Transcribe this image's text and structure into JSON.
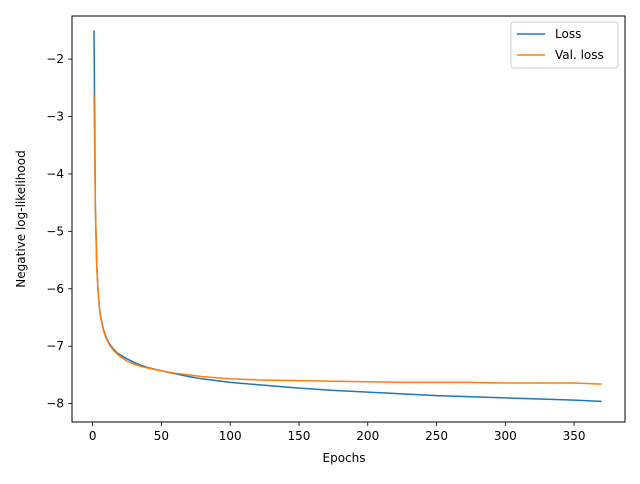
{
  "chart_data": {
    "type": "line",
    "title": "",
    "xlabel": "Epochs",
    "ylabel": "Negative log-likelihood",
    "xlim": [
      -15,
      387
    ],
    "ylim": [
      -8.32,
      -1.25
    ],
    "xticks": [
      0,
      50,
      100,
      150,
      200,
      250,
      300,
      350
    ],
    "yticks": [
      -8,
      -7,
      -6,
      -5,
      -4,
      -3,
      -2
    ],
    "grid": false,
    "legend_position": "top-right",
    "series": [
      {
        "name": "Loss",
        "color": "#1f77b4",
        "x": [
          1,
          2,
          3,
          4,
          5,
          6,
          8,
          10,
          12,
          15,
          18,
          20,
          25,
          30,
          35,
          40,
          50,
          60,
          70,
          80,
          90,
          100,
          125,
          150,
          175,
          200,
          225,
          250,
          275,
          300,
          325,
          350,
          370
        ],
        "y": [
          -1.5,
          -4.6,
          -5.6,
          -6.05,
          -6.35,
          -6.5,
          -6.72,
          -6.85,
          -6.95,
          -7.05,
          -7.12,
          -7.15,
          -7.22,
          -7.28,
          -7.33,
          -7.37,
          -7.43,
          -7.48,
          -7.53,
          -7.57,
          -7.6,
          -7.63,
          -7.68,
          -7.73,
          -7.77,
          -7.8,
          -7.83,
          -7.86,
          -7.88,
          -7.9,
          -7.92,
          -7.94,
          -7.96
        ]
      },
      {
        "name": "Val. loss",
        "color": "#ff7f0e",
        "x": [
          1,
          2,
          3,
          4,
          5,
          6,
          8,
          10,
          12,
          15,
          18,
          20,
          25,
          30,
          35,
          40,
          50,
          60,
          70,
          80,
          90,
          100,
          125,
          150,
          175,
          200,
          225,
          250,
          275,
          300,
          325,
          350,
          370
        ],
        "y": [
          -2.62,
          -4.6,
          -5.6,
          -6.05,
          -6.35,
          -6.52,
          -6.74,
          -6.87,
          -6.97,
          -7.07,
          -7.14,
          -7.18,
          -7.26,
          -7.31,
          -7.35,
          -7.38,
          -7.43,
          -7.47,
          -7.5,
          -7.53,
          -7.55,
          -7.57,
          -7.59,
          -7.6,
          -7.61,
          -7.62,
          -7.63,
          -7.63,
          -7.63,
          -7.64,
          -7.64,
          -7.64,
          -7.66
        ]
      }
    ]
  }
}
